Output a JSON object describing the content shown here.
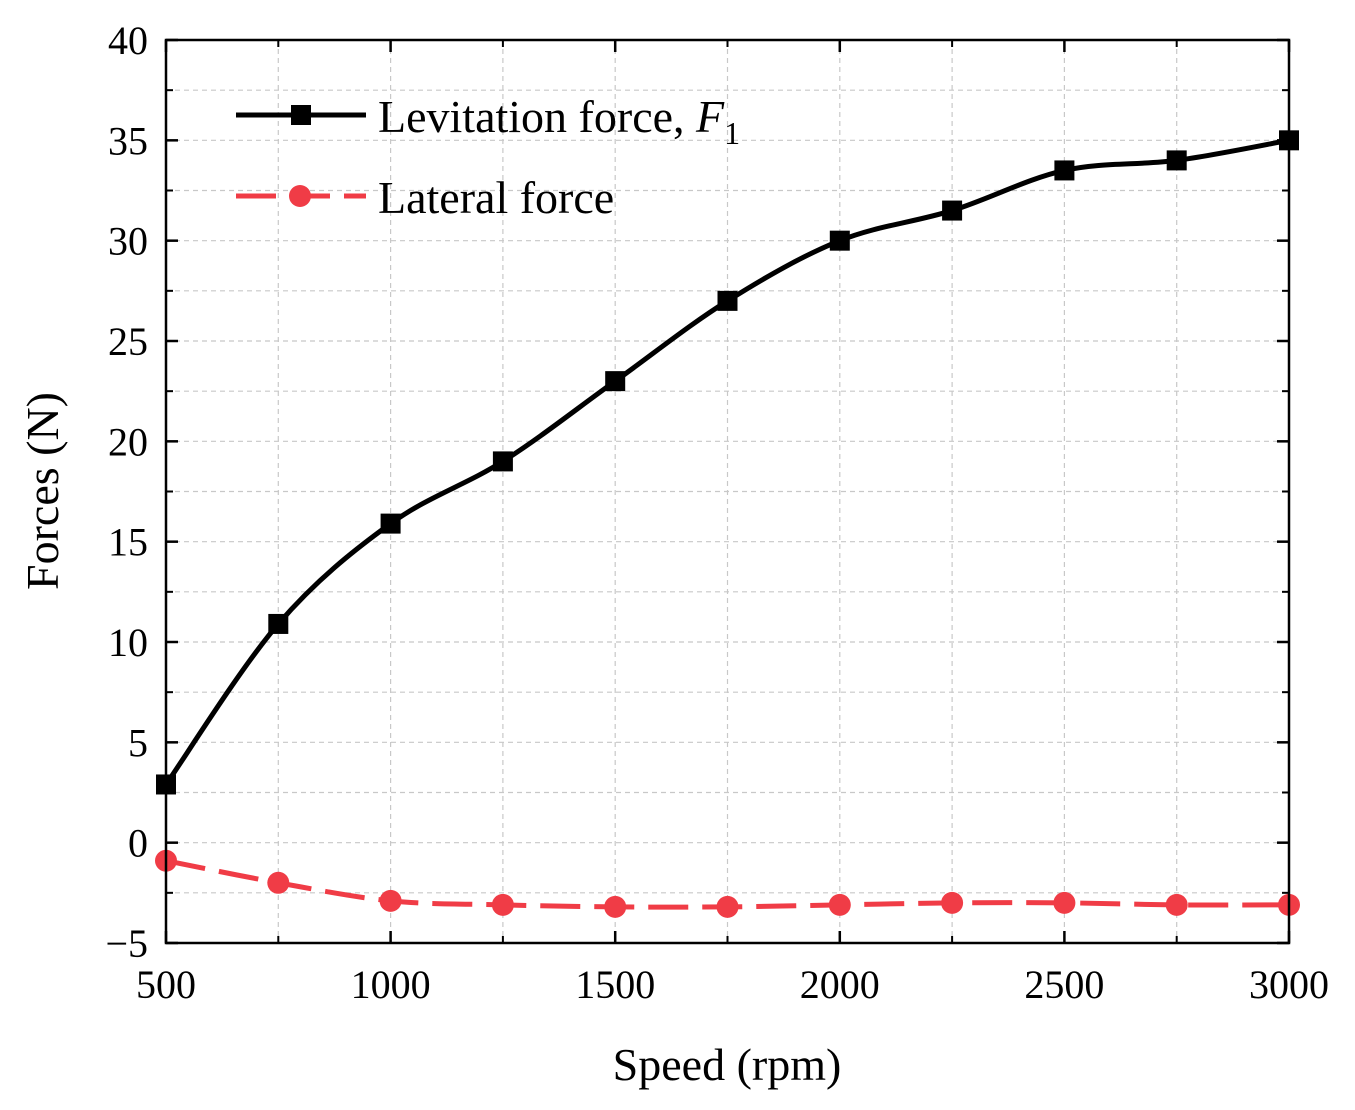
{
  "chart_data": {
    "type": "line",
    "title": "",
    "xlabel": "Speed (rpm)",
    "ylabel": "Forces (N)",
    "xlim": [
      500,
      3000
    ],
    "ylim": [
      -5,
      40
    ],
    "xticks": [
      500,
      1000,
      1500,
      2000,
      2500,
      3000
    ],
    "yticks": [
      -5,
      0,
      5,
      10,
      15,
      20,
      25,
      30,
      35,
      40
    ],
    "xtick_labels": [
      "500",
      "1000",
      "1500",
      "2000",
      "2500",
      "3000"
    ],
    "ytick_labels": [
      "−5",
      "0",
      "5",
      "10",
      "15",
      "20",
      "25",
      "30",
      "35",
      "40"
    ],
    "grid": true,
    "legend_position": "top-left",
    "x": [
      500,
      750,
      1000,
      1250,
      1500,
      1750,
      2000,
      2250,
      2500,
      2750,
      3000
    ],
    "series": [
      {
        "name": "Levitation force, ",
        "name_italic": "F",
        "name_subscript": "1",
        "color": "#000000",
        "marker": "square",
        "line_style": "solid",
        "values": [
          2.9,
          10.9,
          15.9,
          19.0,
          23.0,
          27.0,
          30.0,
          31.5,
          33.5,
          34.0,
          35.0
        ]
      },
      {
        "name": "Lateral force",
        "color": "#f03c46",
        "marker": "circle",
        "line_style": "dashed",
        "values": [
          -0.9,
          -2.0,
          -2.9,
          -3.1,
          -3.2,
          -3.2,
          -3.1,
          -3.0,
          -3.0,
          -3.1,
          -3.1
        ]
      }
    ]
  }
}
